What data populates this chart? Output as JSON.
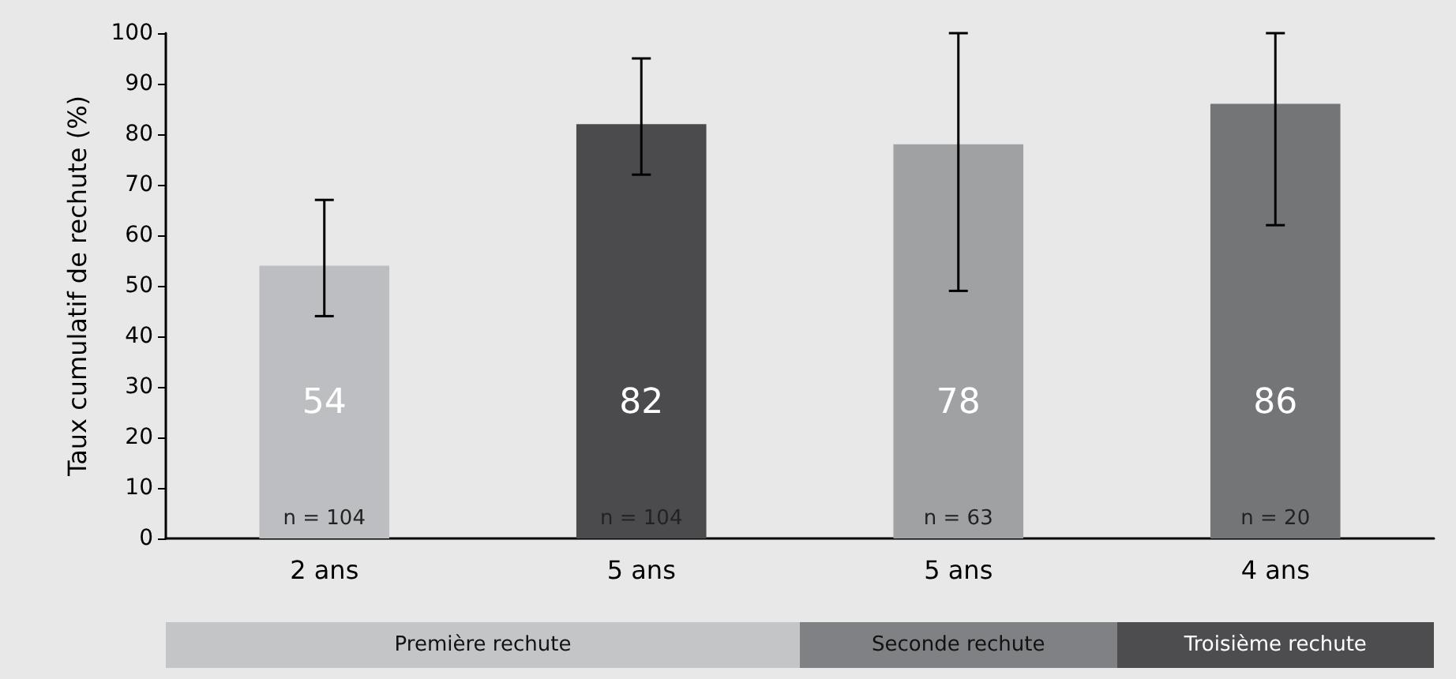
{
  "chart_data": {
    "type": "bar",
    "categories": [
      "2 ans",
      "5 ans",
      "5 ans",
      "4 ans"
    ],
    "values": [
      54,
      82,
      78,
      86
    ],
    "colors": [
      "#bdbec1",
      "#4b4b4d",
      "#a0a1a3",
      "#747577"
    ],
    "errors": [
      [
        44,
        67
      ],
      [
        72,
        95
      ],
      [
        49,
        100
      ],
      [
        62,
        100
      ]
    ],
    "data_labels": true,
    "ylabel": "Taux cumulatif de rechute (%)",
    "ylim": [
      0,
      100
    ],
    "yticks": [
      0,
      10,
      20,
      30,
      40,
      50,
      60,
      70,
      80,
      90,
      100
    ],
    "grid": false,
    "annotations": [
      "n = 104",
      "n = 104",
      "n = 63",
      "n = 20",
      "Première rechute",
      "Seconde rechute",
      "Troisième rechute"
    ]
  }
}
